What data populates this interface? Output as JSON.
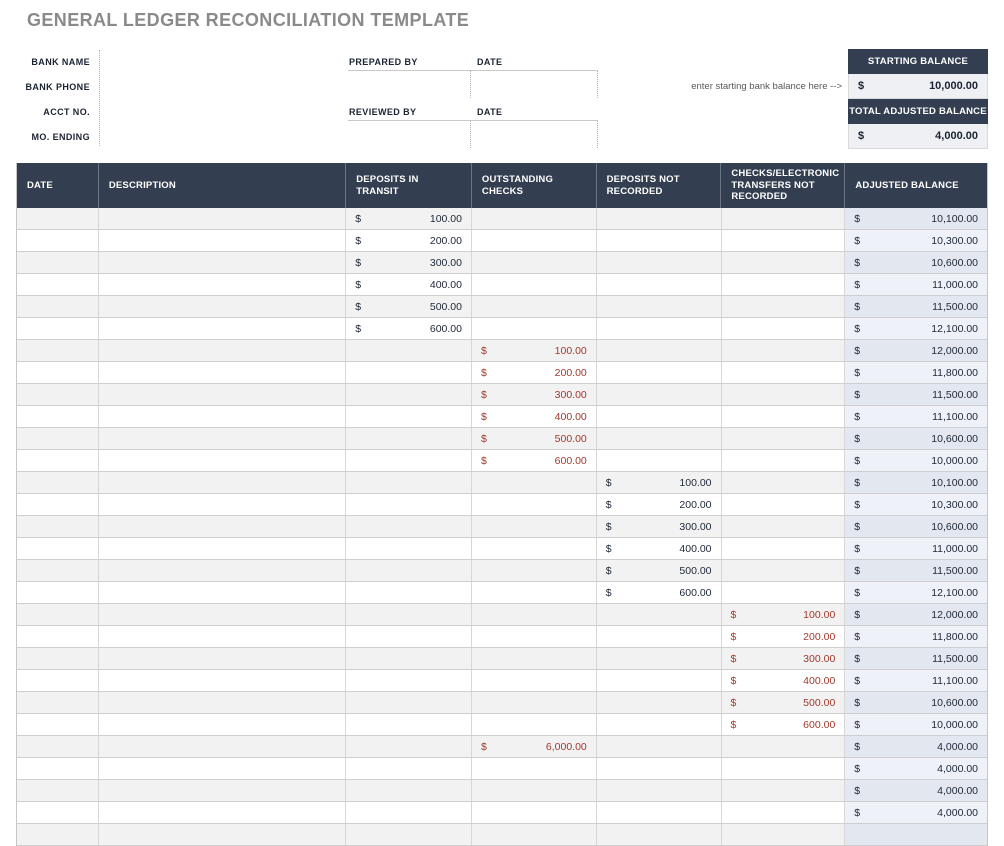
{
  "page": {
    "title": "GENERAL LEDGER RECONCILIATION TEMPLATE"
  },
  "form": {
    "labels": [
      "BANK NAME",
      "BANK PHONE",
      "ACCT NO.",
      "MO. ENDING"
    ],
    "prepared_by_label": "PREPARED BY",
    "prepared_date_label": "DATE",
    "reviewed_by_label": "REVIEWED BY",
    "reviewed_date_label": "DATE"
  },
  "balances": {
    "starting_label": "STARTING BALANCE",
    "starting_currency": "$",
    "starting_value": "10,000.00",
    "starting_hint": "enter starting bank balance here -->",
    "adjusted_label": "TOTAL ADJUSTED BALANCE",
    "adjusted_currency": "$",
    "adjusted_value": "4,000.00"
  },
  "table": {
    "currency": "$",
    "columns": [
      "DATE",
      "DESCRIPTION",
      "DEPOSITS IN TRANSIT",
      "OUTSTANDING CHECKS",
      "DEPOSITS NOT RECORDED",
      "CHECKS/ELECTRONIC TRANSFERS NOT RECORDED",
      "ADJUSTED BALANCE"
    ],
    "row_keys": [
      "date",
      "description",
      "deposits_in_transit",
      "outstanding_checks",
      "deposits_not_recorded",
      "checks_transfers_not_recorded",
      "adjusted_balance"
    ],
    "rows": [
      {
        "date": "",
        "description": "",
        "deposits_in_transit": "100.00",
        "outstanding_checks": "",
        "deposits_not_recorded": "",
        "checks_transfers_not_recorded": "",
        "adjusted_balance": "10,100.00"
      },
      {
        "date": "",
        "description": "",
        "deposits_in_transit": "200.00",
        "outstanding_checks": "",
        "deposits_not_recorded": "",
        "checks_transfers_not_recorded": "",
        "adjusted_balance": "10,300.00"
      },
      {
        "date": "",
        "description": "",
        "deposits_in_transit": "300.00",
        "outstanding_checks": "",
        "deposits_not_recorded": "",
        "checks_transfers_not_recorded": "",
        "adjusted_balance": "10,600.00"
      },
      {
        "date": "",
        "description": "",
        "deposits_in_transit": "400.00",
        "outstanding_checks": "",
        "deposits_not_recorded": "",
        "checks_transfers_not_recorded": "",
        "adjusted_balance": "11,000.00"
      },
      {
        "date": "",
        "description": "",
        "deposits_in_transit": "500.00",
        "outstanding_checks": "",
        "deposits_not_recorded": "",
        "checks_transfers_not_recorded": "",
        "adjusted_balance": "11,500.00"
      },
      {
        "date": "",
        "description": "",
        "deposits_in_transit": "600.00",
        "outstanding_checks": "",
        "deposits_not_recorded": "",
        "checks_transfers_not_recorded": "",
        "adjusted_balance": "12,100.00"
      },
      {
        "date": "",
        "description": "",
        "deposits_in_transit": "",
        "outstanding_checks": "100.00",
        "deposits_not_recorded": "",
        "checks_transfers_not_recorded": "",
        "adjusted_balance": "12,000.00"
      },
      {
        "date": "",
        "description": "",
        "deposits_in_transit": "",
        "outstanding_checks": "200.00",
        "deposits_not_recorded": "",
        "checks_transfers_not_recorded": "",
        "adjusted_balance": "11,800.00"
      },
      {
        "date": "",
        "description": "",
        "deposits_in_transit": "",
        "outstanding_checks": "300.00",
        "deposits_not_recorded": "",
        "checks_transfers_not_recorded": "",
        "adjusted_balance": "11,500.00"
      },
      {
        "date": "",
        "description": "",
        "deposits_in_transit": "",
        "outstanding_checks": "400.00",
        "deposits_not_recorded": "",
        "checks_transfers_not_recorded": "",
        "adjusted_balance": "11,100.00"
      },
      {
        "date": "",
        "description": "",
        "deposits_in_transit": "",
        "outstanding_checks": "500.00",
        "deposits_not_recorded": "",
        "checks_transfers_not_recorded": "",
        "adjusted_balance": "10,600.00"
      },
      {
        "date": "",
        "description": "",
        "deposits_in_transit": "",
        "outstanding_checks": "600.00",
        "deposits_not_recorded": "",
        "checks_transfers_not_recorded": "",
        "adjusted_balance": "10,000.00"
      },
      {
        "date": "",
        "description": "",
        "deposits_in_transit": "",
        "outstanding_checks": "",
        "deposits_not_recorded": "100.00",
        "checks_transfers_not_recorded": "",
        "adjusted_balance": "10,100.00"
      },
      {
        "date": "",
        "description": "",
        "deposits_in_transit": "",
        "outstanding_checks": "",
        "deposits_not_recorded": "200.00",
        "checks_transfers_not_recorded": "",
        "adjusted_balance": "10,300.00"
      },
      {
        "date": "",
        "description": "",
        "deposits_in_transit": "",
        "outstanding_checks": "",
        "deposits_not_recorded": "300.00",
        "checks_transfers_not_recorded": "",
        "adjusted_balance": "10,600.00"
      },
      {
        "date": "",
        "description": "",
        "deposits_in_transit": "",
        "outstanding_checks": "",
        "deposits_not_recorded": "400.00",
        "checks_transfers_not_recorded": "",
        "adjusted_balance": "11,000.00"
      },
      {
        "date": "",
        "description": "",
        "deposits_in_transit": "",
        "outstanding_checks": "",
        "deposits_not_recorded": "500.00",
        "checks_transfers_not_recorded": "",
        "adjusted_balance": "11,500.00"
      },
      {
        "date": "",
        "description": "",
        "deposits_in_transit": "",
        "outstanding_checks": "",
        "deposits_not_recorded": "600.00",
        "checks_transfers_not_recorded": "",
        "adjusted_balance": "12,100.00"
      },
      {
        "date": "",
        "description": "",
        "deposits_in_transit": "",
        "outstanding_checks": "",
        "deposits_not_recorded": "",
        "checks_transfers_not_recorded": "100.00",
        "adjusted_balance": "12,000.00"
      },
      {
        "date": "",
        "description": "",
        "deposits_in_transit": "",
        "outstanding_checks": "",
        "deposits_not_recorded": "",
        "checks_transfers_not_recorded": "200.00",
        "adjusted_balance": "11,800.00"
      },
      {
        "date": "",
        "description": "",
        "deposits_in_transit": "",
        "outstanding_checks": "",
        "deposits_not_recorded": "",
        "checks_transfers_not_recorded": "300.00",
        "adjusted_balance": "11,500.00"
      },
      {
        "date": "",
        "description": "",
        "deposits_in_transit": "",
        "outstanding_checks": "",
        "deposits_not_recorded": "",
        "checks_transfers_not_recorded": "400.00",
        "adjusted_balance": "11,100.00"
      },
      {
        "date": "",
        "description": "",
        "deposits_in_transit": "",
        "outstanding_checks": "",
        "deposits_not_recorded": "",
        "checks_transfers_not_recorded": "500.00",
        "adjusted_balance": "10,600.00"
      },
      {
        "date": "",
        "description": "",
        "deposits_in_transit": "",
        "outstanding_checks": "",
        "deposits_not_recorded": "",
        "checks_transfers_not_recorded": "600.00",
        "adjusted_balance": "10,000.00"
      },
      {
        "date": "",
        "description": "",
        "deposits_in_transit": "",
        "outstanding_checks": "6,000.00",
        "deposits_not_recorded": "",
        "checks_transfers_not_recorded": "",
        "adjusted_balance": "4,000.00"
      },
      {
        "date": "",
        "description": "",
        "deposits_in_transit": "",
        "outstanding_checks": "",
        "deposits_not_recorded": "",
        "checks_transfers_not_recorded": "",
        "adjusted_balance": "4,000.00"
      },
      {
        "date": "",
        "description": "",
        "deposits_in_transit": "",
        "outstanding_checks": "",
        "deposits_not_recorded": "",
        "checks_transfers_not_recorded": "",
        "adjusted_balance": "4,000.00"
      },
      {
        "date": "",
        "description": "",
        "deposits_in_transit": "",
        "outstanding_checks": "",
        "deposits_not_recorded": "",
        "checks_transfers_not_recorded": "",
        "adjusted_balance": "4,000.00"
      },
      {
        "date": "",
        "description": "",
        "deposits_in_transit": "",
        "outstanding_checks": "",
        "deposits_not_recorded": "",
        "checks_transfers_not_recorded": "",
        "adjusted_balance": ""
      }
    ]
  },
  "colors": {
    "header_bg": "#333f50",
    "title_gray": "#8a8a8a",
    "negative_red": "#a03a2e",
    "row_alt_gray": "#f2f2f2",
    "adjusted_tint": "#e3e8f0",
    "text_navy": "#1b2433"
  }
}
